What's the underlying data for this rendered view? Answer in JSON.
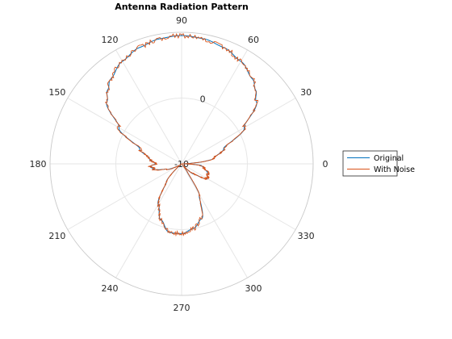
{
  "chart_data": {
    "type": "polar-line",
    "title": "Antenna Radiation Pattern",
    "theta_ticks": [
      "0",
      "30",
      "60",
      "90",
      "120",
      "150",
      "180",
      "210",
      "240",
      "270",
      "300",
      "330"
    ],
    "theta_tick_values_deg": [
      0,
      30,
      60,
      90,
      120,
      150,
      180,
      210,
      240,
      270,
      300,
      330
    ],
    "r_ticks": [
      "-10",
      "0"
    ],
    "r_tick_values": [
      -10,
      0
    ],
    "r_limits": [
      -10,
      10
    ],
    "r_tick_angle_deg": 80,
    "grid": true,
    "legend_position": "right",
    "series": [
      {
        "name": "Original",
        "color": "#0072bd",
        "theta_deg": [
          0,
          10,
          20,
          30,
          40,
          45,
          50,
          60,
          70,
          80,
          90,
          100,
          110,
          120,
          130,
          135,
          140,
          150,
          160,
          170,
          180,
          185,
          190,
          200,
          210,
          215,
          220,
          230,
          240,
          250,
          260,
          270,
          280,
          290,
          300,
          305,
          310,
          320,
          330,
          340,
          350,
          355,
          360
        ],
        "r": [
          -9.8,
          -5.0,
          -3.2,
          1.0,
          4.8,
          5.9,
          6.8,
          8.0,
          8.8,
          9.3,
          9.5,
          9.3,
          8.8,
          8.0,
          6.8,
          5.9,
          4.8,
          1.0,
          -3.2,
          -5.0,
          -6.0,
          -5.2,
          -5.6,
          -7.6,
          -9.2,
          -9.9,
          -9.4,
          -6.4,
          -2.9,
          -0.9,
          0.6,
          0.6,
          0.0,
          -1.1,
          -4.6,
          -8.5,
          -9.8,
          -7.6,
          -5.5,
          -5.8,
          -6.6,
          -7.0,
          -9.8
        ]
      },
      {
        "name": "With Noise",
        "color": "#d95319",
        "noise_amplitude": 0.35
      }
    ]
  }
}
